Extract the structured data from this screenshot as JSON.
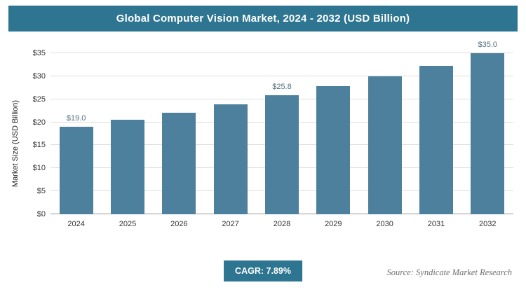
{
  "header": {
    "title": "Global Computer Vision Market, 2024 - 2032 (USD Billion)"
  },
  "chart_data": {
    "type": "bar",
    "title": "Global Computer Vision Market, 2024 - 2032 (USD Billion)",
    "categories": [
      "2024",
      "2025",
      "2026",
      "2027",
      "2028",
      "2029",
      "2030",
      "2031",
      "2032"
    ],
    "values": [
      19.0,
      20.5,
      22.1,
      23.9,
      25.8,
      27.8,
      30.0,
      32.3,
      35.0
    ],
    "bar_labels": [
      "$19.0",
      null,
      null,
      null,
      "$25.8",
      null,
      null,
      null,
      "$35.0"
    ],
    "xlabel": "",
    "ylabel": "Market Size (USD Billion)",
    "ylim": [
      0,
      35
    ],
    "ytick_labels": [
      "$0",
      "$5",
      "$10",
      "$15",
      "$20",
      "$25",
      "$30",
      "$35"
    ],
    "grid": true,
    "legend": "none"
  },
  "footer": {
    "cagr_label": "CAGR: 7.89%",
    "source": "Source: Syndicate Market Research"
  },
  "colors": {
    "accent": "#2d7590",
    "bar_color": "#4d809c",
    "grid": "#dedede"
  }
}
